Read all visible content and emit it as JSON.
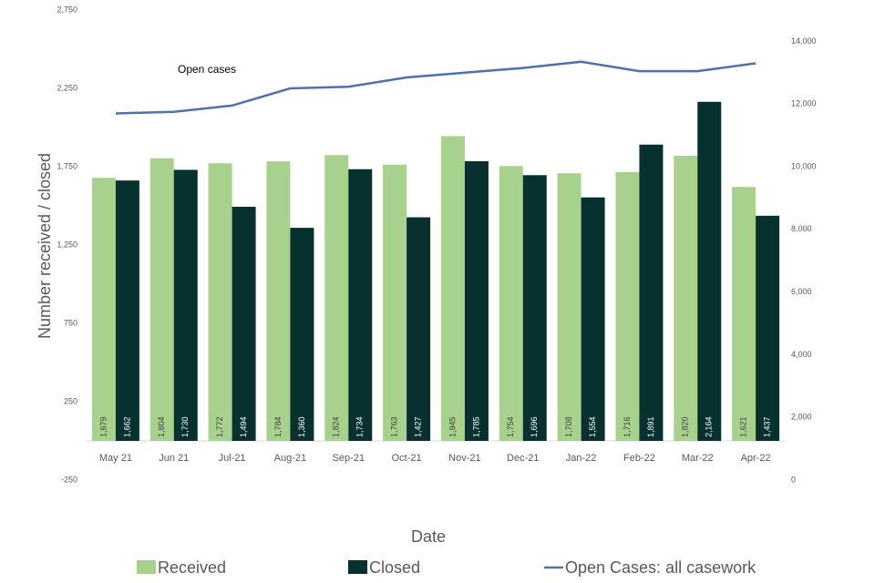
{
  "chart_data": {
    "type": "bar",
    "y_label": "Number received / closed",
    "x_label": "Date",
    "annotation": "Open cases",
    "categories": [
      "May 21",
      "Jun 21",
      "Jul-21",
      "Aug-21",
      "Sep-21",
      "Oct-21",
      "Nov-21",
      "Dec-21",
      "Jan-22",
      "Feb-22",
      "Mar-22",
      "Apr-22"
    ],
    "series": [
      {
        "name": "Received",
        "color": "#a9d18e",
        "values": [
          1679,
          1804,
          1772,
          1784,
          1824,
          1763,
          1945,
          1754,
          1708,
          1716,
          1820,
          1621
        ],
        "value_labels": [
          "1,679",
          "1,804",
          "1,772",
          "1,784",
          "1,824",
          "1,763",
          "1,945",
          "1,754",
          "1,708",
          "1,716",
          "1,820",
          "1,621"
        ]
      },
      {
        "name": "Closed",
        "color": "#06312f",
        "values": [
          1662,
          1730,
          1494,
          1360,
          1734,
          1427,
          1785,
          1696,
          1554,
          1891,
          2164,
          1437
        ],
        "value_labels": [
          "1,662",
          "1,730",
          "1,494",
          "1,360",
          "1,734",
          "1,427",
          "1,785",
          "1,696",
          "1,554",
          "1,891",
          "2,164",
          "1,437"
        ]
      },
      {
        "name": "Open Cases: all casework",
        "color": "#4f72a8",
        "type": "line",
        "axis": "y2",
        "values": [
          11700,
          11750,
          11950,
          12500,
          12550,
          12850,
          13000,
          13150,
          13350,
          13050,
          13050,
          13300
        ]
      }
    ],
    "ylim": [
      -250,
      2750
    ],
    "yticks": [
      -250,
      250,
      750,
      {
        "value": 1250,
        "label": "1,250"
      },
      {
        "value": 1750,
        "label": "1,750"
      },
      {
        "value": 2250,
        "label": "2,250"
      },
      {
        "value": 2750,
        "label": "2,750"
      }
    ],
    "y2lim": [
      0,
      15000
    ],
    "y2ticks": [
      0,
      {
        "value": 2000,
        "label": "2,000"
      },
      {
        "value": 4000,
        "label": "4,000"
      },
      {
        "value": 6000,
        "label": "6,000"
      },
      {
        "value": 8000,
        "label": "8,000"
      },
      {
        "value": 10000,
        "label": "10,000"
      },
      {
        "value": 12000,
        "label": "12,000"
      },
      {
        "value": 14000,
        "label": "14,000"
      }
    ],
    "grid": false
  }
}
